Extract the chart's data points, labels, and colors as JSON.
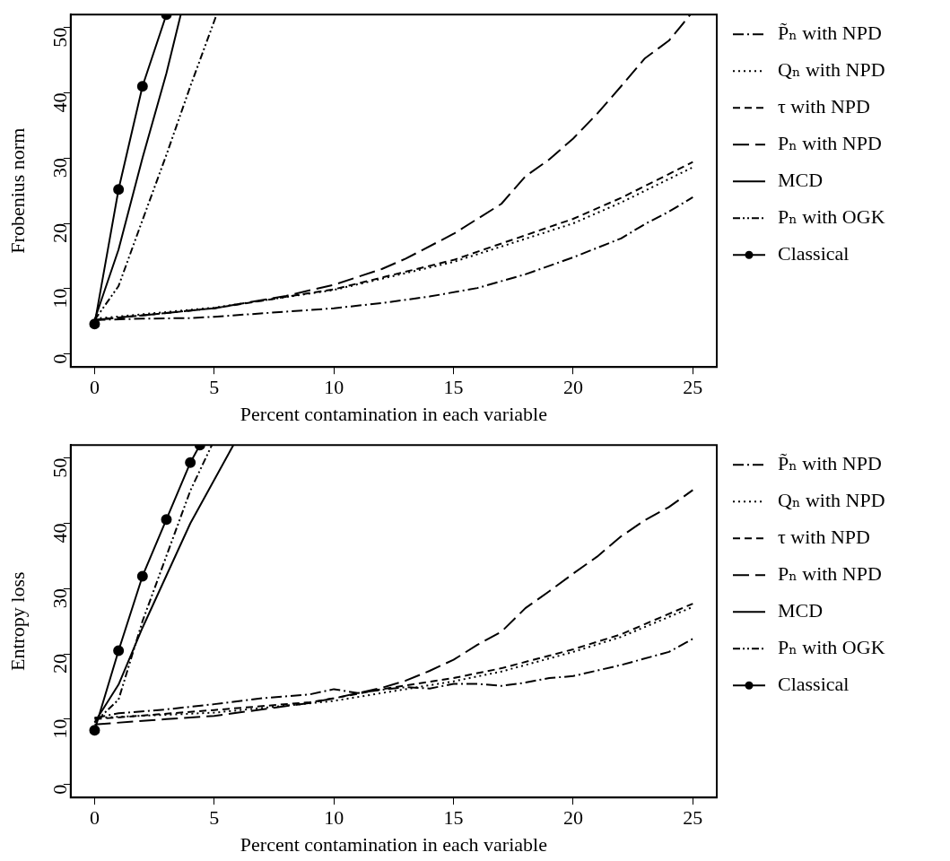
{
  "chart_data": [
    {
      "type": "line",
      "xlabel": "Percent contamination in each variable",
      "ylabel": "Frobenius norm",
      "xlim": [
        -1,
        26
      ],
      "ylim": [
        -2,
        52
      ],
      "xticks": [
        0,
        5,
        10,
        15,
        20,
        25
      ],
      "yticks": [
        0,
        10,
        20,
        30,
        40,
        50
      ],
      "grid": false,
      "legend": "right",
      "series": [
        {
          "name": "P̃ₙ with NPD",
          "color": "#000000",
          "line_style": "dashdot",
          "marker": "none",
          "x": [
            0,
            2,
            4,
            5,
            10,
            12,
            14,
            16,
            18,
            20,
            22,
            23,
            24,
            25
          ],
          "values": [
            5.2,
            5.4,
            5.5,
            5.7,
            7.0,
            7.8,
            8.8,
            10.1,
            12.2,
            14.8,
            17.7,
            19.9,
            21.8,
            24.0
          ]
        },
        {
          "name": "Qₙ with NPD",
          "color": "#000000",
          "line_style": "dotted",
          "marker": "none",
          "x": [
            0,
            5,
            10,
            15,
            20,
            22,
            25
          ],
          "values": [
            5.4,
            7.1,
            9.8,
            14.1,
            20.0,
            23.2,
            28.6
          ]
        },
        {
          "name": "τ with NPD",
          "color": "#000000",
          "line_style": "dashed",
          "marker": "none",
          "x": [
            0,
            5,
            10,
            15,
            20,
            22,
            25
          ],
          "values": [
            5.2,
            7.0,
            9.9,
            14.4,
            20.7,
            23.9,
            29.4
          ]
        },
        {
          "name": "Pₙ with NPD",
          "color": "#000000",
          "line_style": "longdash",
          "marker": "none",
          "x": [
            0,
            5,
            8,
            10,
            12,
            13,
            15,
            17,
            18,
            19,
            20,
            21,
            22,
            23,
            24,
            24.9
          ],
          "values": [
            5.2,
            7.0,
            8.9,
            10.6,
            13.0,
            14.6,
            18.4,
            23.0,
            27.2,
            29.8,
            33.0,
            36.8,
            41.0,
            45.3,
            48.0,
            52
          ]
        },
        {
          "name": "MCD",
          "color": "#000000",
          "line_style": "solid",
          "marker": "none",
          "x": [
            0,
            1,
            2,
            3,
            3.6
          ],
          "values": [
            5.2,
            16.0,
            30.0,
            43.0,
            52
          ]
        },
        {
          "name": "Pₙ with OGK",
          "color": "#000000",
          "line_style": "dashdotdot",
          "marker": "none",
          "x": [
            0,
            1,
            2,
            3,
            4,
            5.1
          ],
          "values": [
            5.2,
            10.4,
            20.5,
            30.5,
            41.0,
            52
          ]
        },
        {
          "name": "Classical",
          "color": "#000000",
          "line_style": "solid",
          "marker": "circle",
          "x": [
            0,
            1,
            2,
            3
          ],
          "values": [
            4.6,
            25.2,
            41.0,
            52
          ]
        }
      ]
    },
    {
      "type": "line",
      "xlabel": "Percent contamination in each variable",
      "ylabel": "Entropy loss",
      "xlim": [
        -1,
        26
      ],
      "ylim": [
        -2,
        52
      ],
      "xticks": [
        0,
        5,
        10,
        15,
        20,
        25
      ],
      "yticks": [
        0,
        10,
        20,
        30,
        40,
        50
      ],
      "grid": false,
      "legend": "right",
      "series": [
        {
          "name": "P̃ₙ with NPD",
          "color": "#000000",
          "line_style": "dashdot",
          "marker": "none",
          "x": [
            0,
            1,
            3,
            5,
            7,
            9,
            10,
            11,
            12,
            13,
            14,
            15,
            16,
            17,
            18,
            19,
            20,
            22,
            24,
            25
          ],
          "values": [
            10.2,
            10.9,
            11.5,
            12.3,
            13.2,
            13.8,
            14.6,
            14.0,
            14.5,
            14.9,
            14.7,
            15.4,
            15.4,
            15.1,
            15.6,
            16.3,
            16.6,
            18.3,
            20.3,
            22.3
          ]
        },
        {
          "name": "Qₙ with NPD",
          "color": "#000000",
          "line_style": "dotted",
          "marker": "none",
          "x": [
            0,
            5,
            10,
            12,
            15,
            17,
            20,
            22,
            25
          ],
          "values": [
            10.2,
            11.0,
            12.8,
            14.0,
            15.8,
            17.3,
            20.3,
            22.6,
            27.2
          ]
        },
        {
          "name": "τ with NPD",
          "color": "#000000",
          "line_style": "dashed",
          "marker": "none",
          "x": [
            0,
            5,
            9,
            10,
            12,
            15,
            17,
            20,
            22,
            25
          ],
          "values": [
            10.0,
            11.4,
            12.6,
            13.2,
            14.6,
            16.3,
            17.8,
            20.7,
            23.0,
            27.7
          ]
        },
        {
          "name": "Pₙ with NPD",
          "color": "#000000",
          "line_style": "longdash",
          "marker": "none",
          "x": [
            0,
            3,
            5,
            7,
            9,
            10,
            12,
            13,
            14,
            15,
            16,
            17,
            18,
            19,
            20,
            21,
            22,
            23,
            24,
            25
          ],
          "values": [
            9.2,
            10.0,
            10.5,
            11.5,
            12.5,
            13.2,
            14.8,
            15.9,
            17.4,
            19.1,
            21.4,
            23.4,
            27.0,
            29.6,
            32.3,
            34.9,
            38.0,
            40.5,
            42.5,
            45.1
          ]
        },
        {
          "name": "MCD",
          "color": "#000000",
          "line_style": "solid",
          "marker": "none",
          "x": [
            0,
            1,
            2,
            3,
            4,
            5.8
          ],
          "values": [
            9.5,
            15.3,
            24.0,
            32.0,
            40.0,
            52
          ]
        },
        {
          "name": "Pₙ with OGK",
          "color": "#000000",
          "line_style": "dashdotdot",
          "marker": "none",
          "x": [
            0,
            1,
            2,
            3,
            4,
            4.9
          ],
          "values": [
            9.5,
            13.0,
            25.0,
            35.0,
            45.0,
            52
          ]
        },
        {
          "name": "Classical",
          "color": "#000000",
          "line_style": "solid",
          "marker": "circle",
          "x": [
            0,
            1,
            2,
            3,
            4,
            4.4
          ],
          "values": [
            8.3,
            20.5,
            31.9,
            40.6,
            49.3,
            52
          ]
        }
      ]
    }
  ]
}
